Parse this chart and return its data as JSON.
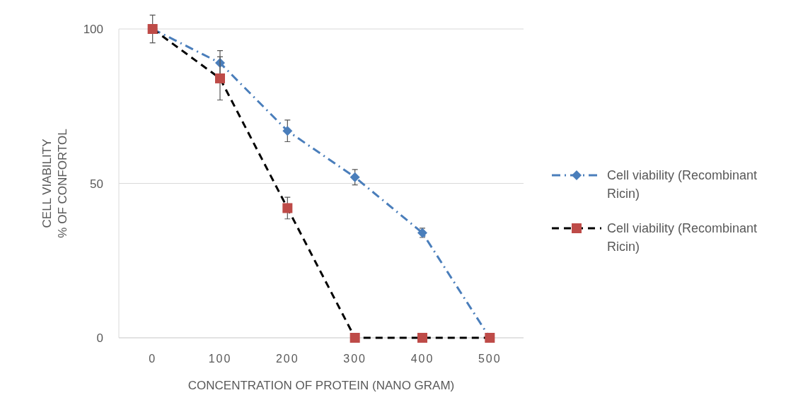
{
  "chart_data": {
    "type": "line",
    "xlabel": "CONCENTRATION OF PROTEIN (NANO GRAM)",
    "ylabel": "CELL VIABILITY\n% OF CONFORTOL",
    "categories": [
      "0",
      "100",
      "200",
      "300",
      "400",
      "500"
    ],
    "series": [
      {
        "name": "Cell viability (Recombinant Ricin)",
        "color": "#4a7ebb",
        "values": [
          100,
          89,
          67,
          52,
          34,
          0
        ],
        "errors": [
          null,
          4,
          3.5,
          2.5,
          1.5,
          null
        ],
        "marker": "diamond",
        "line_style": "dashdot"
      },
      {
        "name": "Cell viability (Recombinant Ricin)",
        "color": "#000000",
        "colors": [
          "#be4b48",
          "#be4b48",
          "#be4b48",
          "#be4b48",
          "#be4b48",
          "#be4b48"
        ],
        "values": [
          100,
          84,
          42,
          0,
          0,
          0
        ],
        "errors": [
          4.5,
          7,
          3.5,
          null,
          null,
          null
        ],
        "marker": "square",
        "line_style": "dashed"
      }
    ],
    "ylim": [
      0,
      100
    ],
    "yticks": [
      0,
      50,
      100
    ],
    "grid": "y",
    "legend": "right"
  }
}
